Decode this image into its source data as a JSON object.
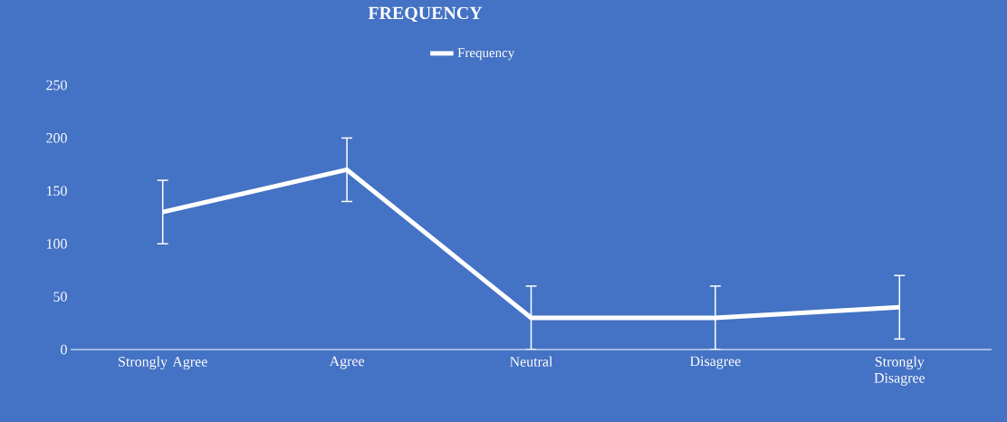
{
  "chart_data": {
    "type": "line",
    "title": "FREQUENCY",
    "categories": [
      "Strongly Agree",
      "Agree",
      "Neutral",
      "Disagree",
      "Strongly Disagree"
    ],
    "series": [
      {
        "name": "Frequency",
        "color": "#ffffff",
        "values": [
          130,
          170,
          30,
          30,
          40
        ],
        "errors": [
          30,
          30,
          30,
          30,
          30
        ]
      }
    ],
    "ylim": [
      0,
      250
    ],
    "yticks": [
      0,
      50,
      100,
      150,
      200,
      250
    ],
    "grid": false,
    "legend": "top",
    "marker": "none",
    "line_style": "solid"
  }
}
